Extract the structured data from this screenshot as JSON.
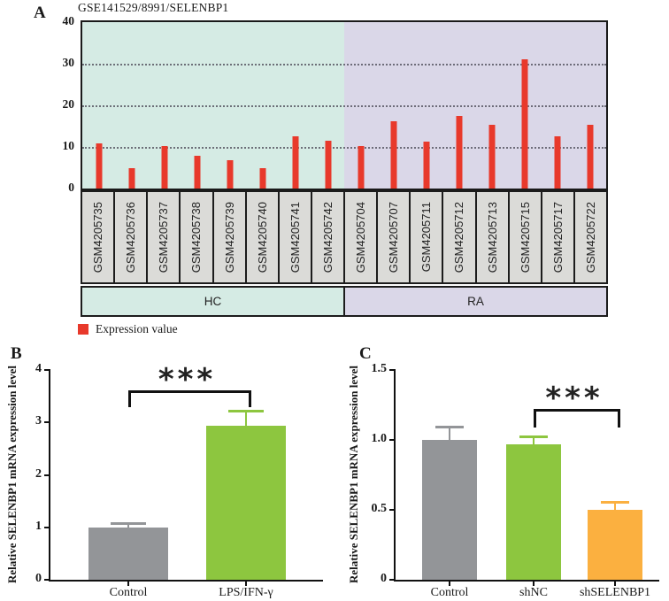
{
  "panels": {
    "a": {
      "label": "A",
      "title": "GSE141529/8991/SELENBP1",
      "legend_label": "Expression value"
    },
    "b": {
      "label": "B"
    },
    "c": {
      "label": "C"
    }
  },
  "colors": {
    "expression_bar": "#e8392b",
    "hc_background": "#d5ebe4",
    "ra_background": "#dad7e8",
    "sample_box": "#dbdbd8",
    "gray_bar": "#939598",
    "green_bar": "#8dc63f",
    "orange_bar": "#fbb040"
  },
  "chart_data": [
    {
      "type": "bar",
      "panel": "A",
      "title": "GSE141529/8991/SELENBP1",
      "categories": [
        "GSM4205735",
        "GSM4205736",
        "GSM4205737",
        "GSM4205738",
        "GSM4205739",
        "GSM4205740",
        "GSM4205741",
        "GSM4205742",
        "GSM4205704",
        "GSM4205707",
        "GSM4205711",
        "GSM4205712",
        "GSM4205713",
        "GSM4205715",
        "GSM4205717",
        "GSM4205722"
      ],
      "values": [
        10.9,
        4.9,
        10.2,
        7.8,
        6.8,
        4.8,
        12.5,
        11.4,
        10.3,
        16.1,
        11.2,
        17.5,
        15.3,
        31.0,
        12.5,
        15.4
      ],
      "groups": [
        {
          "name": "HC",
          "color": "#d5ebe4",
          "n_samples": 8
        },
        {
          "name": "RA",
          "color": "#dad7e8",
          "n_samples": 8
        }
      ],
      "bar_color": "#e8392b",
      "ylim": [
        0,
        40
      ],
      "yticks": [
        "0",
        "10",
        "20",
        "30",
        "40"
      ],
      "gridlines": [
        10,
        20,
        30
      ],
      "legend": [
        "Expression value"
      ]
    },
    {
      "type": "bar",
      "panel": "B",
      "categories": [
        "Control",
        "LPS/IFN-γ"
      ],
      "values": [
        1.0,
        2.93
      ],
      "errors": [
        0.07,
        0.27
      ],
      "colors": [
        "#939598",
        "#8dc63f"
      ],
      "ylabel": "Relative SELENBP1 mRNA expression level",
      "ylim": [
        0,
        4
      ],
      "yticks": [
        "0",
        "1",
        "2",
        "3",
        "4"
      ],
      "significance": {
        "between": [
          "Control",
          "LPS/IFN-γ"
        ],
        "label": "***"
      }
    },
    {
      "type": "bar",
      "panel": "C",
      "categories": [
        "Control",
        "shNC",
        "shSELENBP1"
      ],
      "values": [
        1.0,
        0.97,
        0.5
      ],
      "errors": [
        0.09,
        0.05,
        0.05
      ],
      "colors": [
        "#939598",
        "#8dc63f",
        "#fbb040"
      ],
      "ylabel": "Relative SELENBP1 mRNA expression level",
      "ylim": [
        0,
        1.5
      ],
      "yticks": [
        "0",
        "0.5",
        "1.0",
        "1.5"
      ],
      "significance": {
        "between": [
          "shNC",
          "shSELENBP1"
        ],
        "label": "***"
      }
    }
  ]
}
